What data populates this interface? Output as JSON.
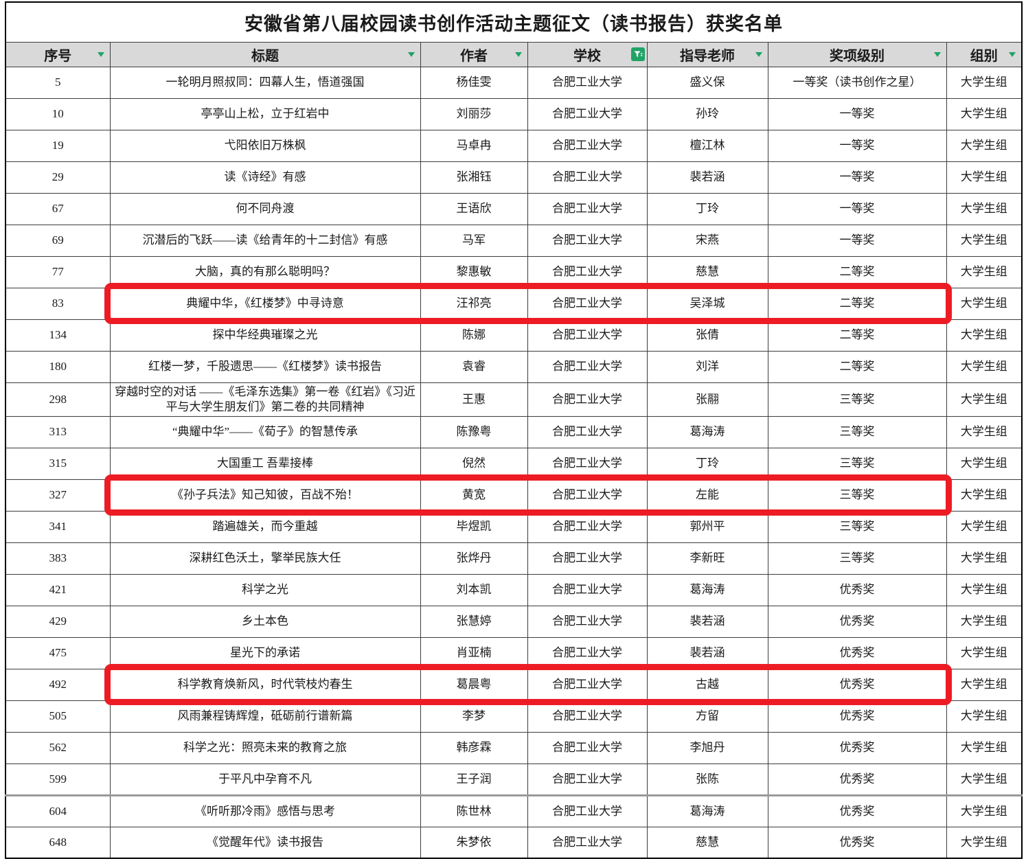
{
  "title": "安徽省第八届校园读书创作活动主题征文（读书报告）获奖名单",
  "columns": [
    {
      "key": "no",
      "label": "序号",
      "filter": "dropdown",
      "icon": "filter-dropdown-arrow-icon"
    },
    {
      "key": "title",
      "label": "标题",
      "filter": "dropdown",
      "icon": "filter-dropdown-arrow-icon"
    },
    {
      "key": "author",
      "label": "作者",
      "filter": "dropdown",
      "icon": "filter-dropdown-arrow-icon"
    },
    {
      "key": "school",
      "label": "学校",
      "filter": "active",
      "icon": "filter-funnel-icon"
    },
    {
      "key": "advisor",
      "label": "指导老师",
      "filter": "dropdown",
      "icon": "filter-dropdown-arrow-icon"
    },
    {
      "key": "award",
      "label": "奖项级别",
      "filter": "dropdown",
      "icon": "filter-dropdown-arrow-icon"
    },
    {
      "key": "group",
      "label": "组别",
      "filter": "dropdown",
      "icon": "filter-dropdown-arrow-icon"
    }
  ],
  "rows": [
    {
      "no": "5",
      "title": "一轮明月照叔同：四幕人生，悟道强国",
      "author": "杨佳雯",
      "school": "合肥工业大学",
      "advisor": "盛义保",
      "award": "一等奖（读书创作之星）",
      "group": "大学生组",
      "highlighted": false
    },
    {
      "no": "10",
      "title": "亭亭山上松，立于红岩中",
      "author": "刘丽莎",
      "school": "合肥工业大学",
      "advisor": "孙玲",
      "award": "一等奖",
      "group": "大学生组",
      "highlighted": false
    },
    {
      "no": "19",
      "title": "弋阳依旧万株枫",
      "author": "马卓冉",
      "school": "合肥工业大学",
      "advisor": "檀江林",
      "award": "一等奖",
      "group": "大学生组",
      "highlighted": false
    },
    {
      "no": "29",
      "title": "读《诗经》有感",
      "author": "张湘钰",
      "school": "合肥工业大学",
      "advisor": "裴若涵",
      "award": "一等奖",
      "group": "大学生组",
      "highlighted": false
    },
    {
      "no": "67",
      "title": "何不同舟渡",
      "author": "王语欣",
      "school": "合肥工业大学",
      "advisor": "丁玲",
      "award": "一等奖",
      "group": "大学生组",
      "highlighted": false
    },
    {
      "no": "69",
      "title": "沉潜后的飞跃——读《给青年的十二封信》有感",
      "author": "马军",
      "school": "合肥工业大学",
      "advisor": "宋燕",
      "award": "一等奖",
      "group": "大学生组",
      "highlighted": false
    },
    {
      "no": "77",
      "title": "大脑，真的有那么聪明吗？",
      "author": "黎惠敏",
      "school": "合肥工业大学",
      "advisor": "慈慧",
      "award": "二等奖",
      "group": "大学生组",
      "highlighted": false
    },
    {
      "no": "83",
      "title": "典耀中华，《红楼梦》中寻诗意",
      "author": "汪祁亮",
      "school": "合肥工业大学",
      "advisor": "吴泽城",
      "award": "二等奖",
      "group": "大学生组",
      "highlighted": true
    },
    {
      "no": "134",
      "title": "探中华经典璀璨之光",
      "author": "陈娜",
      "school": "合肥工业大学",
      "advisor": "张倩",
      "award": "二等奖",
      "group": "大学生组",
      "highlighted": false
    },
    {
      "no": "180",
      "title": "红楼一梦，千股遗思——《红楼梦》读书报告",
      "author": "袁睿",
      "school": "合肥工业大学",
      "advisor": "刘洋",
      "award": "二等奖",
      "group": "大学生组",
      "highlighted": false
    },
    {
      "no": "298",
      "title": "穿越时空的对话 ——《毛泽东选集》第一卷《红岩》《习近平与大学生朋友们》第二卷的共同精神",
      "author": "王惠",
      "school": "合肥工业大学",
      "advisor": "张翮",
      "award": "三等奖",
      "group": "大学生组",
      "highlighted": false
    },
    {
      "no": "313",
      "title": "“典耀中华”——《荀子》的智慧传承",
      "author": "陈豫粤",
      "school": "合肥工业大学",
      "advisor": "葛海涛",
      "award": "三等奖",
      "group": "大学生组",
      "highlighted": false
    },
    {
      "no": "315",
      "title": "大国重工 吾辈接棒",
      "author": "倪然",
      "school": "合肥工业大学",
      "advisor": "丁玲",
      "award": "三等奖",
      "group": "大学生组",
      "highlighted": false
    },
    {
      "no": "327",
      "title": "《孙子兵法》知己知彼，百战不殆！",
      "author": "黄宽",
      "school": "合肥工业大学",
      "advisor": "左能",
      "award": "三等奖",
      "group": "大学生组",
      "highlighted": true
    },
    {
      "no": "341",
      "title": "踏遍雄关，而今重越",
      "author": "毕煜凯",
      "school": "合肥工业大学",
      "advisor": "郭州平",
      "award": "三等奖",
      "group": "大学生组",
      "highlighted": false
    },
    {
      "no": "383",
      "title": "深耕红色沃土，擎举民族大任",
      "author": "张烨丹",
      "school": "合肥工业大学",
      "advisor": "李新旺",
      "award": "三等奖",
      "group": "大学生组",
      "highlighted": false
    },
    {
      "no": "421",
      "title": "科学之光",
      "author": "刘本凯",
      "school": "合肥工业大学",
      "advisor": "葛海涛",
      "award": "优秀奖",
      "group": "大学生组",
      "highlighted": false
    },
    {
      "no": "429",
      "title": "乡土本色",
      "author": "张慧婷",
      "school": "合肥工业大学",
      "advisor": "裴若涵",
      "award": "优秀奖",
      "group": "大学生组",
      "highlighted": false
    },
    {
      "no": "475",
      "title": "星光下的承诺",
      "author": "肖亚楠",
      "school": "合肥工业大学",
      "advisor": "裴若涵",
      "award": "优秀奖",
      "group": "大学生组",
      "highlighted": false
    },
    {
      "no": "492",
      "title": "科学教育焕新风，时代茕枝灼春生",
      "author": "葛晨粤",
      "school": "合肥工业大学",
      "advisor": "古越",
      "award": "优秀奖",
      "group": "大学生组",
      "highlighted": true
    },
    {
      "no": "505",
      "title": "风雨兼程铸辉煌，砥砺前行谱新篇",
      "author": "李梦",
      "school": "合肥工业大学",
      "advisor": "方留",
      "award": "优秀奖",
      "group": "大学生组",
      "highlighted": false
    },
    {
      "no": "562",
      "title": "科学之光：照亮未来的教育之旅",
      "author": "韩彦霖",
      "school": "合肥工业大学",
      "advisor": "李旭丹",
      "award": "优秀奖",
      "group": "大学生组",
      "highlighted": false
    },
    {
      "no": "599",
      "title": "于平凡中孕育不凡",
      "author": "王子润",
      "school": "合肥工业大学",
      "advisor": "张陈",
      "award": "优秀奖",
      "group": "大学生组",
      "highlighted": false
    },
    {
      "no": "604",
      "title": "《听听那冷雨》感悟与思考",
      "author": "陈世林",
      "school": "合肥工业大学",
      "advisor": "葛海涛",
      "award": "优秀奖",
      "group": "大学生组",
      "highlighted": false,
      "divider_above": true
    },
    {
      "no": "648",
      "title": "《觉醒年代》读书报告",
      "author": "朱梦依",
      "school": "合肥工业大学",
      "advisor": "慈慧",
      "award": "优秀奖",
      "group": "大学生组",
      "highlighted": false
    }
  ],
  "colors": {
    "highlight_red": "#ed1c24",
    "filter_green": "#21a366",
    "header_bg": "#d9d9d9",
    "grid_border": "#3c3c3c"
  }
}
